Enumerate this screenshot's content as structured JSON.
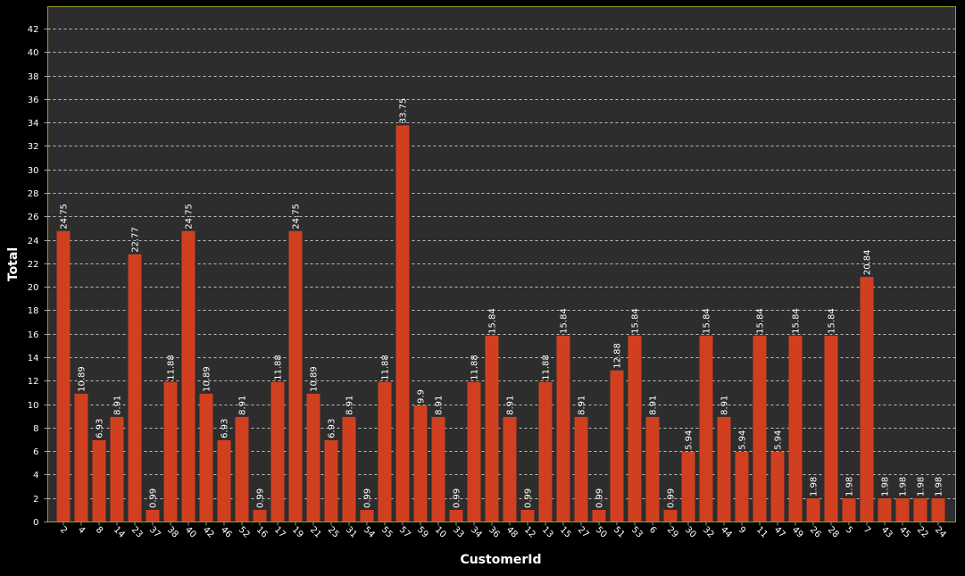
{
  "chart_data": {
    "type": "bar",
    "title": "",
    "xlabel": "CustomerId",
    "ylabel": "Total",
    "ylim": [
      0,
      43
    ],
    "yticks": [
      0,
      2,
      4,
      6,
      8,
      10,
      12,
      14,
      16,
      18,
      20,
      22,
      24,
      26,
      28,
      30,
      32,
      34,
      36,
      38,
      40,
      42
    ],
    "grid": true,
    "legend": "none",
    "categories": [
      "2",
      "4",
      "8",
      "14",
      "23",
      "37",
      "38",
      "40",
      "42",
      "46",
      "52",
      "16",
      "17",
      "19",
      "21",
      "25",
      "31",
      "54",
      "55",
      "57",
      "59",
      "10",
      "33",
      "34",
      "36",
      "48",
      "12",
      "13",
      "15",
      "27",
      "50",
      "51",
      "53",
      "6",
      "29",
      "30",
      "32",
      "44",
      "9",
      "11",
      "47",
      "49",
      "26",
      "28",
      "5",
      "7",
      "43",
      "45",
      "22",
      "24"
    ],
    "series": [
      {
        "values": [
          24.75,
          10.89,
          6.93,
          8.91,
          22.77,
          0.99,
          11.88,
          24.75,
          10.89,
          6.93,
          8.91,
          0.99,
          11.88,
          24.75,
          10.89,
          6.93,
          8.91,
          0.99,
          11.88,
          33.75,
          9.9,
          8.91,
          0.99,
          11.88,
          15.84,
          8.91,
          0.99,
          11.88,
          15.84,
          8.91,
          0.99,
          12.88,
          15.84,
          8.91,
          0.99,
          5.94,
          15.84,
          8.91,
          5.94,
          15.84,
          5.94,
          15.84,
          1.98,
          15.84,
          1.98,
          20.84,
          1.98,
          1.98,
          1.98,
          1.98
        ],
        "labels": [
          "24.75",
          "10.89",
          "6.93",
          "8.91",
          "22.77",
          "0.99",
          "11.88",
          "24.75",
          "10.89",
          "6.93",
          "8.91",
          "0.99",
          "11.88",
          "24.75",
          "10.89",
          "6.93",
          "8.91",
          "0.99",
          "11.88",
          "33.75",
          "9.9",
          "8.91",
          "0.99",
          "11.88",
          "15.84",
          "8.91",
          "0.99",
          "11.88",
          "15.84",
          "8.91",
          "0.99",
          "12.88",
          "15.84",
          "8.91",
          "0.99",
          "5.94",
          "15.84",
          "8.91",
          "5.94",
          "15.84",
          "5.94",
          "15.84",
          "1.98",
          "15.84",
          "1.98",
          "20.84",
          "1.98",
          "1.98",
          "1.98",
          "1.98"
        ]
      }
    ],
    "colors": {
      "bar": "#d04020",
      "plot_background": "#2d2d2d",
      "page_background": "#000000",
      "plot_border": "#9a9a30",
      "grid": "#bdbdbd",
      "text": "#ffffff"
    }
  }
}
